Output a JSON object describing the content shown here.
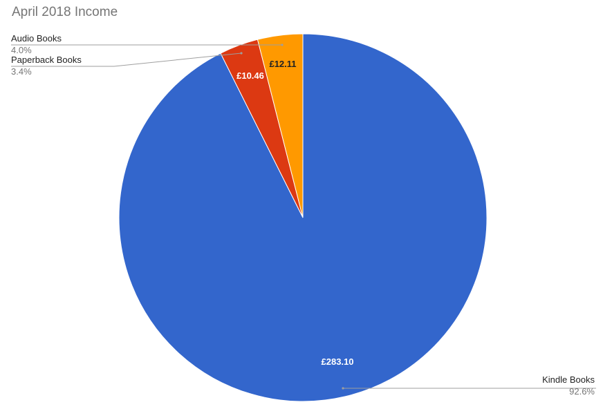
{
  "chart_data": {
    "type": "pie",
    "title": "April 2018 Income",
    "slices": [
      {
        "name": "Kindle Books",
        "value": 283.1,
        "value_label": "£283.10",
        "percent_label": "92.6%",
        "color": "#3366cc",
        "label_color": "#ffffff"
      },
      {
        "name": "Paperback Books",
        "value": 10.46,
        "value_label": "£10.46",
        "percent_label": "3.4%",
        "color": "#dc3912",
        "label_color": "#ffffff"
      },
      {
        "name": "Audio Books",
        "value": 12.11,
        "value_label": "£12.11",
        "percent_label": "4.0%",
        "color": "#ff9900",
        "label_color": "#222222"
      }
    ],
    "legend": "labeled"
  }
}
